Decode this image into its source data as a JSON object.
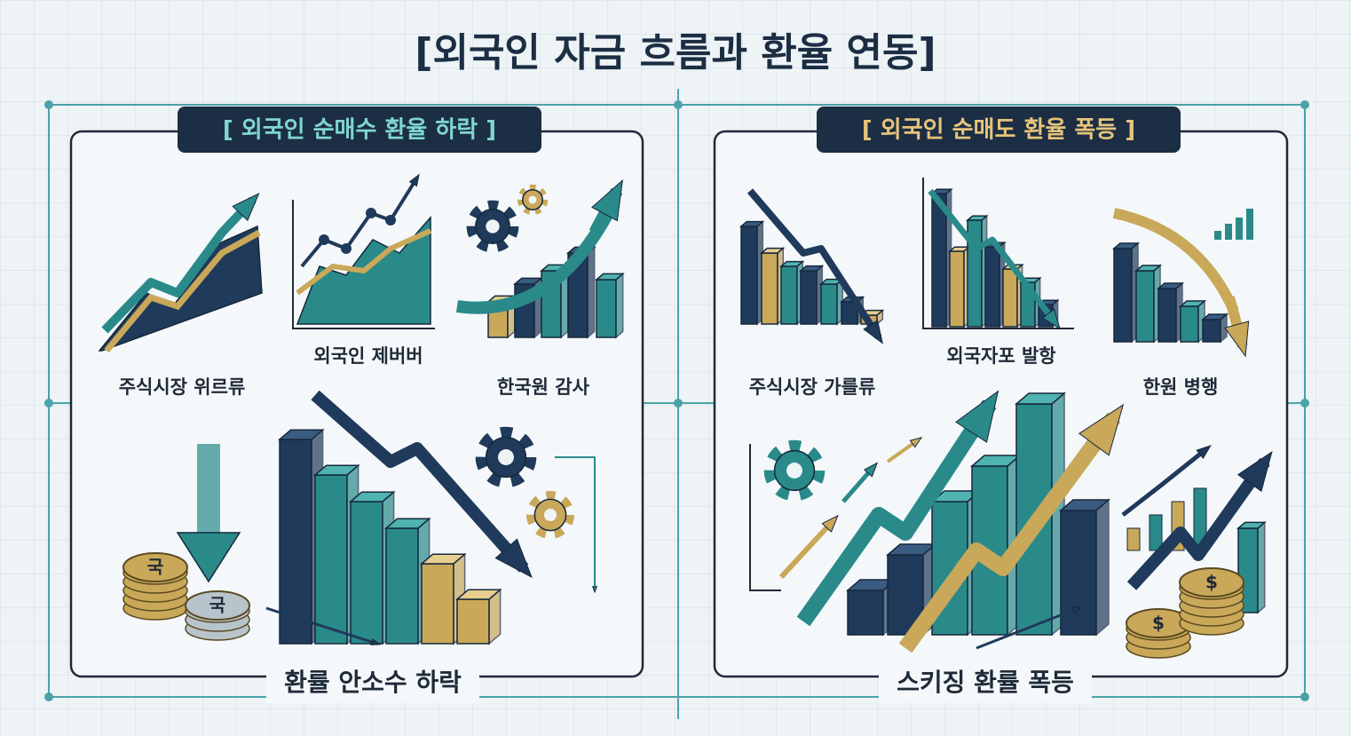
{
  "title": "[외국인 자금 흐름과 환율 연동]",
  "panels": [
    {
      "heading": "[ 외국인 순매수 환율 하락 ]",
      "labels": [
        "주식시장 위르류",
        "외국인 제버버",
        "한국원 감사"
      ],
      "caption": "환률 안소수 하락",
      "coin_labels": [
        "국",
        "국"
      ]
    },
    {
      "heading": "[ 외국인 순매도 환율 폭등 ]",
      "labels": [
        "주식시장 가를류",
        "외국자포 발항",
        "한원 병행"
      ],
      "caption": "스키징 환률 폭등",
      "coin_labels": [
        "$",
        "$"
      ]
    }
  ]
}
